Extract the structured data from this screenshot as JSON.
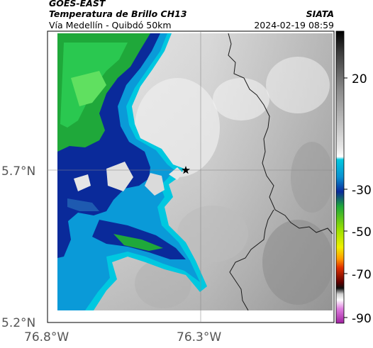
{
  "header": {
    "title": "GOES-EAST",
    "subtitle": "Temperatura de Brillo CH13",
    "route": "Vía Medellín - Quibdó 50km",
    "org": "SIATA",
    "datetime": "2024-02-19 08:59"
  },
  "map": {
    "lat_labels": [
      "5.7°N",
      "5.2°N"
    ],
    "lon_labels": [
      "76.8°W",
      "76.3°W"
    ],
    "marker": "star-marker"
  },
  "colorbar": {
    "labels": [
      "20",
      "-30",
      "-50",
      "-70",
      "-90"
    ],
    "unit_colors": {
      "warm_gray": "#8a8a8a",
      "cyan": "#00c8e0",
      "blue": "#0a2a9a",
      "green": "#1fa83a",
      "yellow": "#f0f000",
      "orange": "#ff6a00",
      "red": "#c00000",
      "magenta": "#c040c0"
    }
  }
}
